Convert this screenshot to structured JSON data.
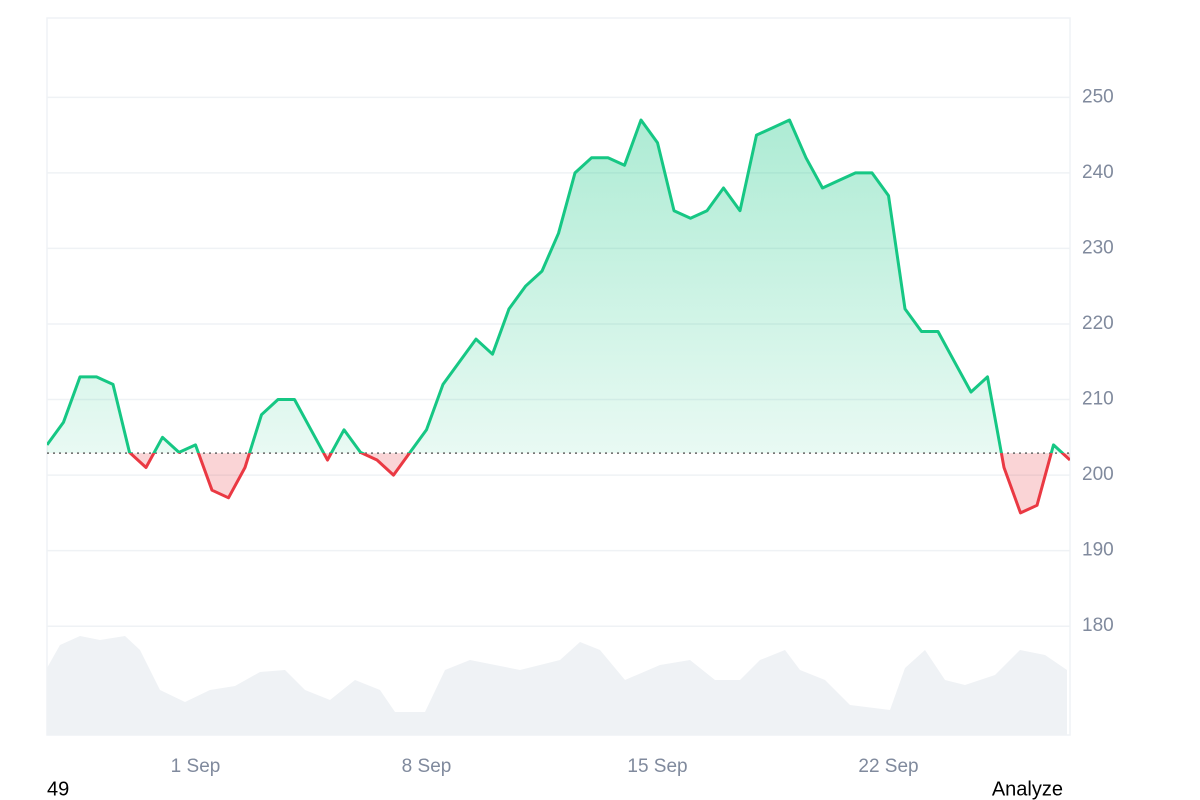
{
  "chart_data": {
    "type": "line",
    "categories": [
      null,
      null,
      null,
      null,
      null,
      null,
      null,
      null,
      null,
      "1 Sep",
      null,
      null,
      null,
      null,
      null,
      null,
      null,
      null,
      null,
      null,
      null,
      null,
      null,
      "8 Sep",
      null,
      null,
      null,
      null,
      null,
      null,
      null,
      null,
      null,
      null,
      null,
      null,
      null,
      "15 Sep",
      null,
      null,
      null,
      null,
      null,
      null,
      null,
      null,
      null,
      null,
      null,
      null,
      null,
      "22 Sep",
      null,
      null,
      null,
      null,
      null,
      null,
      null,
      null,
      null,
      null,
      null
    ],
    "values": [
      204,
      207,
      213,
      213,
      212,
      203,
      201,
      205,
      203,
      204,
      198,
      197,
      201,
      208,
      210,
      210,
      206,
      202,
      206,
      203,
      202,
      200,
      203,
      206,
      212,
      215,
      218,
      216,
      222,
      225,
      227,
      232,
      240,
      242,
      242,
      241,
      247,
      244,
      235,
      234,
      235,
      238,
      235,
      245,
      246,
      247,
      242,
      238,
      239,
      240,
      240,
      237,
      222,
      219,
      219,
      215,
      211,
      213,
      201,
      195,
      196,
      204,
      202
    ],
    "baseline": 202.9,
    "up_color": "#16c784",
    "down_color": "#ea3943",
    "ylim": [
      165.6,
      260.5
    ],
    "yticks": [
      180,
      190,
      200,
      210,
      220,
      230,
      240,
      250
    ],
    "grid": true,
    "footer_left": "49",
    "footer_right": "Analyze"
  }
}
